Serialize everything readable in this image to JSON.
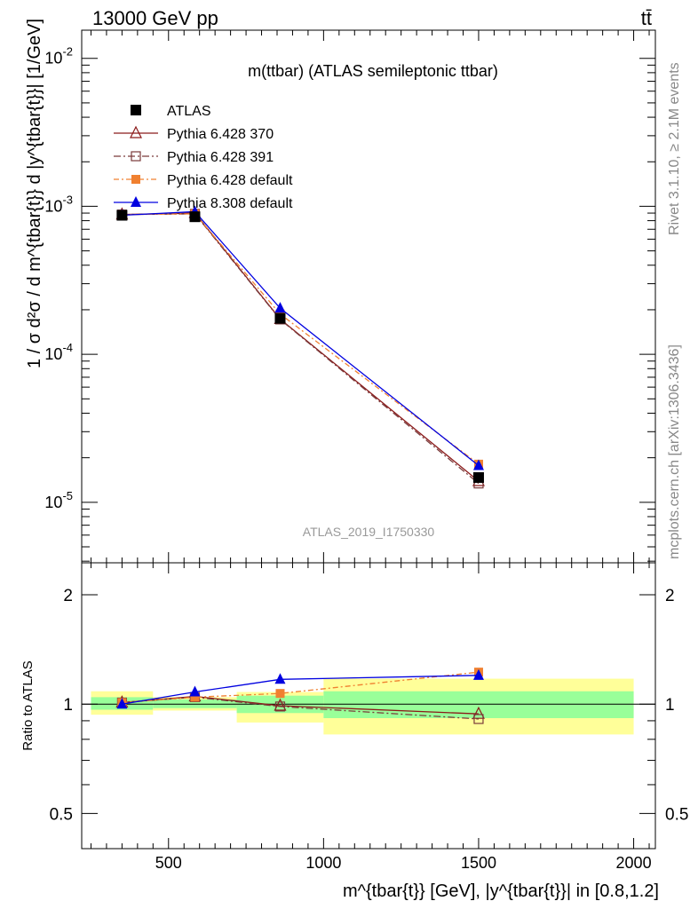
{
  "header": {
    "left": "13000 GeV pp",
    "right": "tt̄"
  },
  "side_labels": {
    "rivet": "Rivet 3.1.10, ≥ 2.1M events",
    "mcplots": "mcplots.cern.ch [arXiv:1306.3436]"
  },
  "chart_data": [
    {
      "type": "line",
      "title": "m(ttbar) (ATLAS semileptonic ttbar)",
      "watermark": "ATLAS_2019_I1750330",
      "ylabel": "1 / σ d²σ / d m^{tbar{t}} d |y^{tbar{t}}| [1/GeV]",
      "xlim": [
        220,
        2070
      ],
      "ylim": [
        3.9e-06,
        0.0155
      ],
      "y_scale": "log",
      "y_ticks": [
        "10^-5",
        "10^-4",
        "10^-3",
        "10^-2"
      ],
      "legend_position": "top-left",
      "x": [
        350,
        585,
        860,
        1500
      ],
      "series": [
        {
          "name": "ATLAS",
          "color": "#000000",
          "marker": "square",
          "values": [
            0.00087,
            0.00085,
            0.000175,
            1.47e-05
          ]
        },
        {
          "name": "Pythia 6.428 370",
          "color": "#8b1a1a",
          "marker": "open-triangle",
          "values": [
            0.00088,
            0.0009,
            0.000173,
            1.39e-05
          ]
        },
        {
          "name": "Pythia 6.428 391",
          "color": "#7a3a3a",
          "marker": "open-square",
          "values": [
            0.00088,
            0.00089,
            0.000172,
            1.34e-05
          ]
        },
        {
          "name": "Pythia 6.428 default",
          "color": "#f08030",
          "marker": "filled-square",
          "values": [
            0.00088,
            0.00089,
            0.000187,
            1.81e-05
          ]
        },
        {
          "name": "Pythia 8.308 default",
          "color": "#0000e0",
          "marker": "filled-triangle",
          "values": [
            0.00087,
            0.00092,
            0.000205,
            1.77e-05
          ]
        }
      ]
    },
    {
      "type": "line",
      "ylabel": "Ratio to ATLAS",
      "xlabel": "m^{tbar{t}} [GeV], |y^{tbar{t}}| in [0.8,1.2]",
      "xlim": [
        220,
        2070
      ],
      "ylim": [
        0.4,
        2.45
      ],
      "y_scale": "log",
      "x_ticks": [
        "500",
        "1000",
        "1500",
        "2000"
      ],
      "y_ticks": [
        "0.5",
        "1",
        "2"
      ],
      "bands": [
        {
          "x": [
            250,
            450
          ],
          "stat": [
            0.965,
            1.045
          ],
          "total": [
            0.935,
            1.085
          ]
        },
        {
          "x": [
            450,
            720
          ],
          "stat": [
            0.975,
            1.03
          ],
          "total": [
            0.96,
            1.045
          ]
        },
        {
          "x": [
            720,
            1000
          ],
          "stat": [
            0.945,
            1.055
          ],
          "total": [
            0.89,
            1.08
          ]
        },
        {
          "x": [
            1000,
            2000
          ],
          "stat": [
            0.915,
            1.085
          ],
          "total": [
            0.825,
            1.175
          ]
        }
      ],
      "x": [
        350,
        585,
        860,
        1500
      ],
      "series": [
        {
          "name": "Pythia 6.428 370",
          "values": [
            1.01,
            1.05,
            0.99,
            0.94
          ]
        },
        {
          "name": "Pythia 6.428 391",
          "values": [
            1.01,
            1.045,
            0.985,
            0.91
          ]
        },
        {
          "name": "Pythia 6.428 default",
          "values": [
            1.01,
            1.045,
            1.07,
            1.225
          ]
        },
        {
          "name": "Pythia 8.308 default",
          "values": [
            1.0,
            1.08,
            1.17,
            1.2
          ]
        }
      ]
    }
  ]
}
